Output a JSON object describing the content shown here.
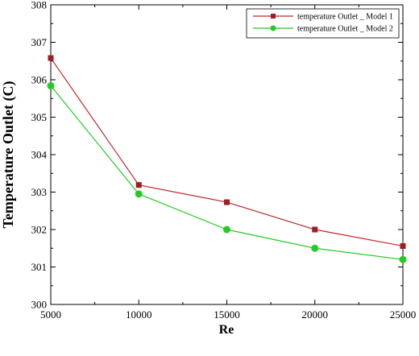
{
  "chart_data": {
    "type": "line",
    "title": "",
    "xlabel": "Re",
    "ylabel": "Temperature Outlet (C)",
    "x": [
      5000,
      10000,
      15000,
      20000,
      25000
    ],
    "xlim": [
      5000,
      25000
    ],
    "ylim": [
      300,
      308
    ],
    "x_ticks": [
      5000,
      10000,
      15000,
      20000,
      25000
    ],
    "y_ticks": [
      300,
      301,
      302,
      303,
      304,
      305,
      306,
      307,
      308
    ],
    "grid": false,
    "legend_position": "top-right",
    "series": [
      {
        "name": "temperature Outlet _ Model 1",
        "values": [
          306.58,
          303.19,
          302.73,
          302.0,
          301.56
        ],
        "color": "#c0272d",
        "marker": "square"
      },
      {
        "name": "temperature Outlet _ Model 2",
        "values": [
          305.84,
          302.95,
          302.0,
          301.5,
          301.2
        ],
        "color": "#22cc22",
        "marker": "circle"
      }
    ]
  }
}
